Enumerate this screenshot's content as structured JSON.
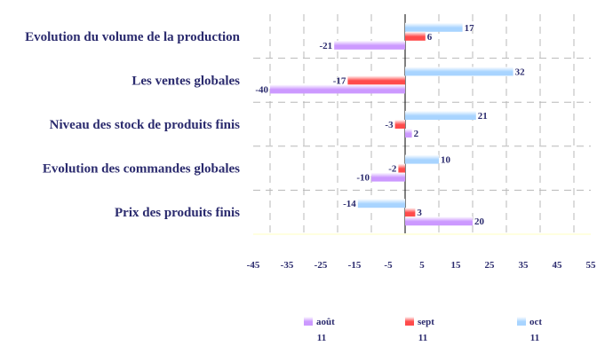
{
  "chart_data": {
    "type": "bar",
    "orientation": "horizontal",
    "categories": [
      "Evolution du volume de la production",
      "Les ventes globales",
      "Niveau des stock de produits finis",
      "Evolution des commandes globales",
      "Prix des produits finis"
    ],
    "series": [
      {
        "name": "août",
        "name_line2": "11",
        "color": "#cc99ff",
        "values": [
          -21,
          -40,
          2,
          -10,
          20
        ]
      },
      {
        "name": "sept",
        "name_line2": "11",
        "color": "#ff4b4b",
        "values": [
          6,
          -17,
          -3,
          -2,
          3
        ]
      },
      {
        "name": "oct",
        "name_line2": "11",
        "color": "#a8d4ff",
        "values": [
          17,
          32,
          21,
          10,
          -14
        ]
      }
    ],
    "x_ticks": [
      "-45",
      "-35",
      "-25",
      "-15",
      "-5",
      "5",
      "15",
      "25",
      "35",
      "45",
      "55"
    ],
    "xlim": [
      -45,
      55
    ],
    "grid": true,
    "legend_position": "bottom"
  }
}
